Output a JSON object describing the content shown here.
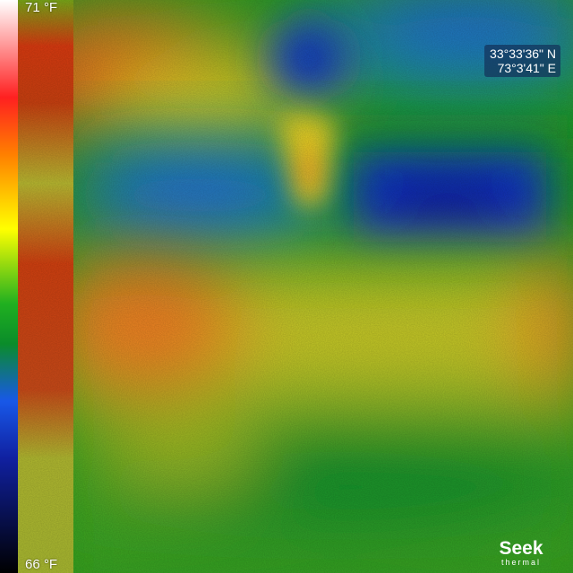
{
  "scale": {
    "max_label": "71 °F",
    "min_label": "66 °F",
    "palette": [
      "#ffffff",
      "#ff2020",
      "#ff8000",
      "#ffff00",
      "#20b020",
      "#0a8c2a",
      "#1858e8",
      "#1020a0",
      "#000000"
    ]
  },
  "gps": {
    "latitude": "33°33'36\" N",
    "longitude": "73°3'41\" E"
  },
  "logo": {
    "brand": "Seek",
    "tagline": "thermal",
    "color": "#ffffff"
  },
  "colors": {
    "hot": "#ff3010",
    "warm": "#ffd010",
    "neutral": "#5ec020",
    "cool": "#0a9a30",
    "cold": "#1040e0"
  }
}
